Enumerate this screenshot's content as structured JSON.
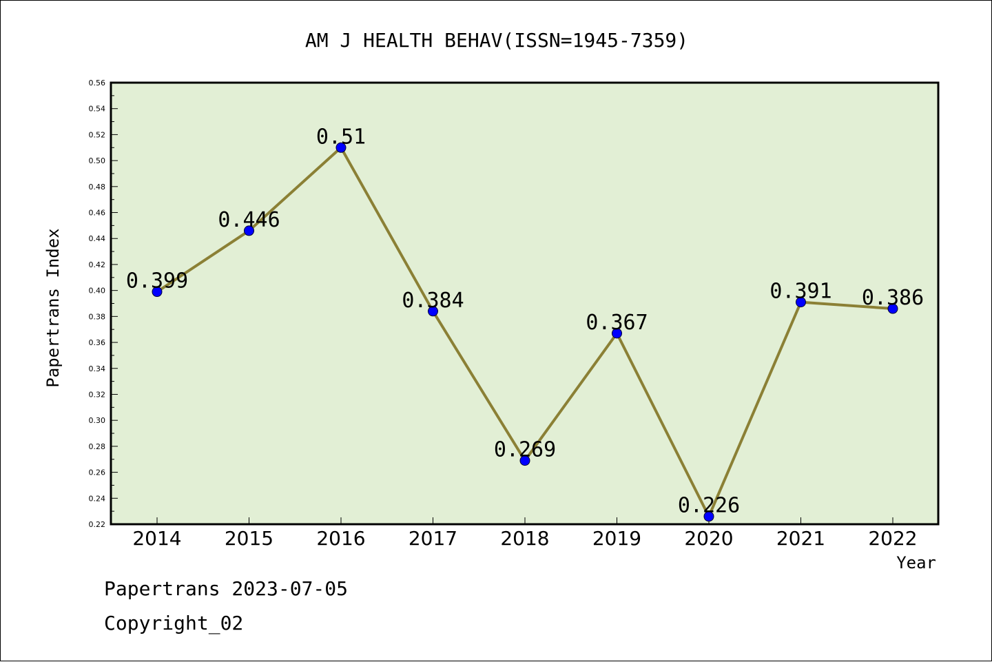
{
  "chart_data": {
    "type": "line",
    "title": "AM J HEALTH BEHAV(ISSN=1945-7359)",
    "xlabel": "Year",
    "ylabel": "Papertrans Index",
    "categories": [
      "2014",
      "2015",
      "2016",
      "2017",
      "2018",
      "2019",
      "2020",
      "2021",
      "2022"
    ],
    "values": [
      0.399,
      0.446,
      0.51,
      0.384,
      0.269,
      0.367,
      0.226,
      0.391,
      0.386
    ],
    "data_labels": [
      "0.399",
      "0.446",
      "0.51",
      "0.384",
      "0.269",
      "0.367",
      "0.226",
      "0.391",
      "0.386"
    ],
    "ylim": [
      0.22,
      0.56
    ],
    "yticks": [
      "0.22",
      "0.24",
      "0.26",
      "0.28",
      "0.30",
      "0.32",
      "0.34",
      "0.36",
      "0.38",
      "0.40",
      "0.42",
      "0.44",
      "0.46",
      "0.48",
      "0.50",
      "0.52",
      "0.54",
      "0.56"
    ],
    "grid": false,
    "colors": {
      "plot_background": "#e2efd5",
      "line": "#8b8035",
      "marker": "#0000ff"
    }
  },
  "footer": {
    "line1": "Papertrans 2023-07-05",
    "line2": "Copyright_02"
  }
}
